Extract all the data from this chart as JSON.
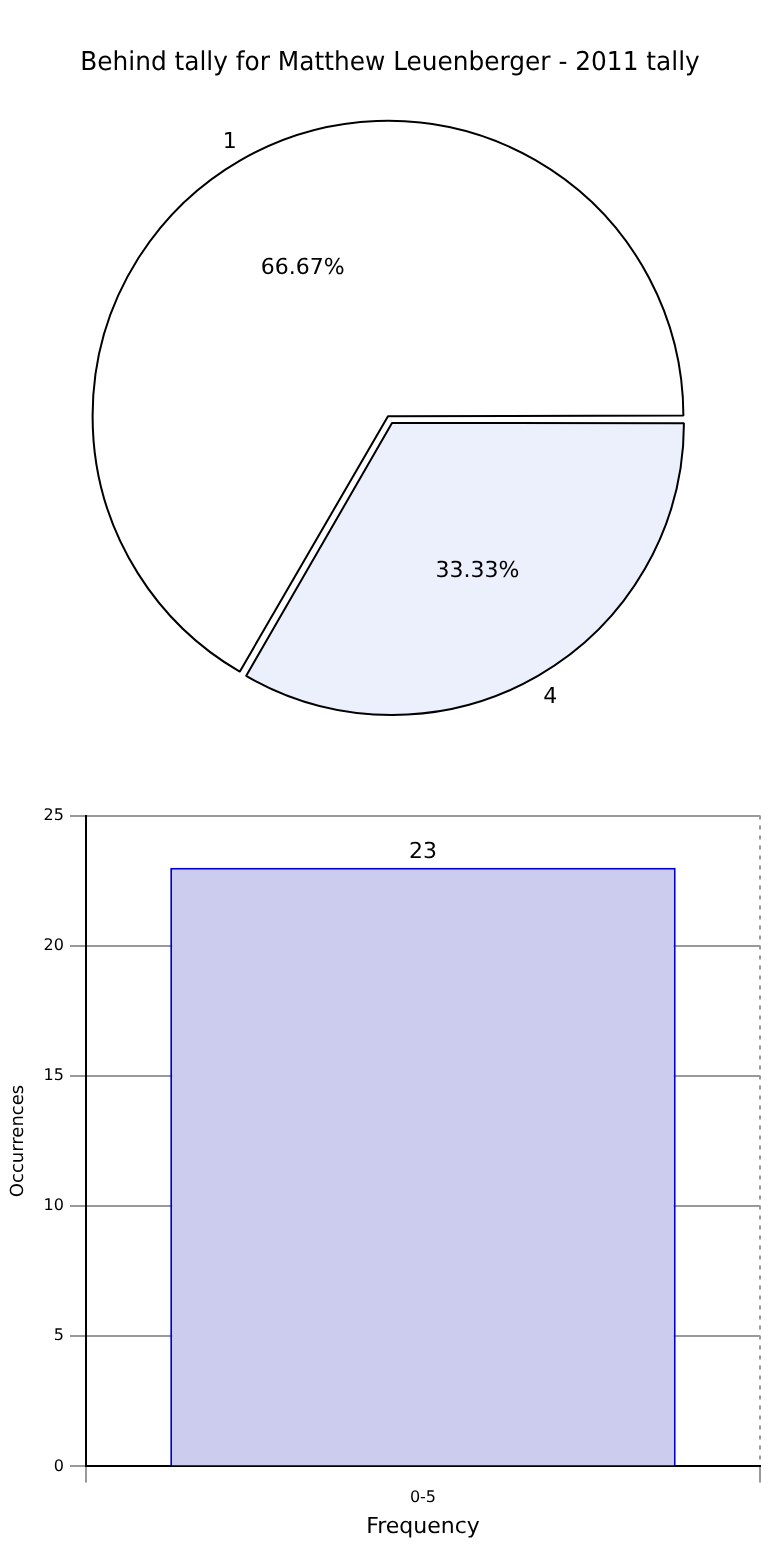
{
  "chart_data": [
    {
      "type": "pie",
      "title": "Behind tally for Matthew Leuenberger - 2011 tally",
      "categories": [
        "1",
        "4"
      ],
      "values": [
        66.67,
        33.33
      ],
      "colors": [
        "#ffffff",
        "#ebf0fc"
      ],
      "value_labels": [
        "66.67%",
        "33.33%"
      ],
      "legend": false
    },
    {
      "type": "bar",
      "categories": [
        "0-5"
      ],
      "values": [
        23
      ],
      "color": "#ccccee",
      "xlabel": "Frequency",
      "ylabel": "Occurrences",
      "ylim": [
        0,
        25
      ],
      "yticks": [
        0,
        5,
        10,
        15,
        20,
        25
      ],
      "grid": true,
      "data_labels": true,
      "legend": false
    }
  ]
}
